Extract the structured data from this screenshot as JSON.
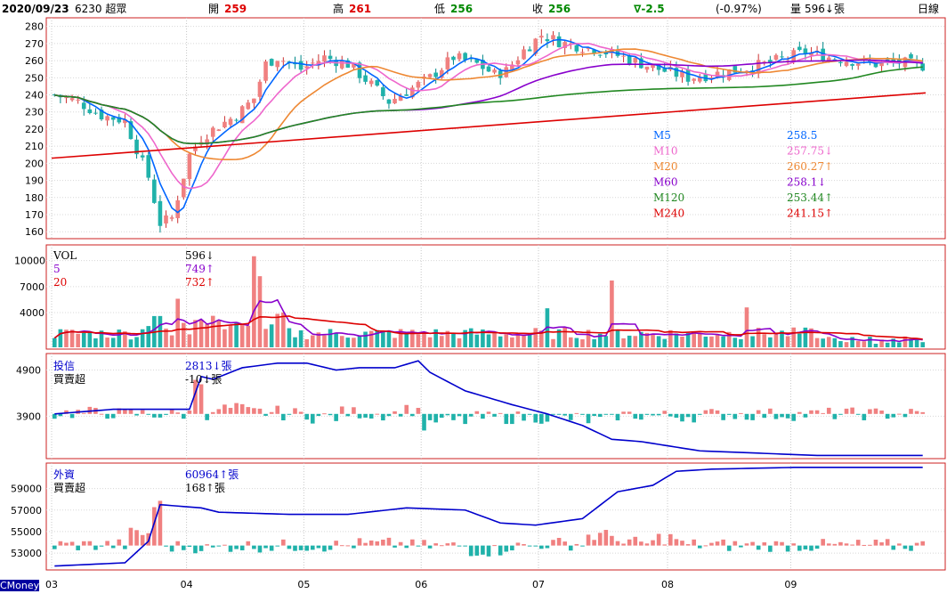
{
  "header": {
    "date": "2020/09/23",
    "stock": "6230 超眾",
    "open_label": "開",
    "open": "259",
    "high_label": "高",
    "high": "261",
    "low_label": "低",
    "low": "256",
    "close_label": "收",
    "close": "256",
    "change": "∇-2.5",
    "change_pct": "(-0.97%)",
    "volume_label": "量",
    "volume": "596↓張",
    "period": "日線"
  },
  "colors": {
    "up": "#f08080",
    "down": "#20b2aa",
    "frame": "#cc2222",
    "ma5": "#0066ff",
    "ma10": "#ee66cc",
    "ma20": "#ee8833",
    "ma60": "#8800cc",
    "ma120": "#228822",
    "ma240": "#dd0000",
    "vol5": "#8800cc",
    "vol20": "#dd0000",
    "trust_line": "#0000cc",
    "foreign_line": "#0000cc"
  },
  "chart_data": [
    {
      "type": "candlestick",
      "name": "price",
      "y_ticks": [
        160,
        170,
        180,
        190,
        200,
        210,
        220,
        230,
        240,
        250,
        260,
        270,
        280
      ],
      "ylim": [
        157,
        284
      ],
      "x_ticks": [
        "03",
        "04",
        "05",
        "06",
        "07",
        "08",
        "09"
      ],
      "month_starts": [
        0,
        23,
        43,
        63,
        83,
        105,
        126
      ],
      "candles_total": 149,
      "waypoints": [
        [
          0,
          240
        ],
        [
          4,
          236
        ],
        [
          8,
          228
        ],
        [
          12,
          225
        ],
        [
          16,
          192
        ],
        [
          18,
          165
        ],
        [
          20,
          168
        ],
        [
          23,
          205
        ],
        [
          25,
          215
        ],
        [
          28,
          222
        ],
        [
          31,
          228
        ],
        [
          34,
          238
        ],
        [
          36,
          258
        ],
        [
          38,
          262
        ],
        [
          42,
          255
        ],
        [
          46,
          262
        ],
        [
          50,
          258
        ],
        [
          54,
          246
        ],
        [
          57,
          236
        ],
        [
          60,
          242
        ],
        [
          64,
          250
        ],
        [
          68,
          262
        ],
        [
          72,
          258
        ],
        [
          75,
          252
        ],
        [
          77,
          254
        ],
        [
          80,
          266
        ],
        [
          83,
          275
        ],
        [
          87,
          270
        ],
        [
          92,
          267
        ],
        [
          97,
          262
        ],
        [
          102,
          256
        ],
        [
          108,
          250
        ],
        [
          112,
          252
        ],
        [
          117,
          255
        ],
        [
          121,
          258
        ],
        [
          125,
          262
        ],
        [
          128,
          265
        ],
        [
          132,
          262
        ],
        [
          136,
          260
        ],
        [
          140,
          258
        ],
        [
          144,
          259
        ],
        [
          148,
          257
        ]
      ],
      "legend": [
        {
          "name": "M5",
          "value": "258.5"
        },
        {
          "name": "M10",
          "value": "257.75↓"
        },
        {
          "name": "M20",
          "value": "260.27↑"
        },
        {
          "name": "M60",
          "value": "258.1↓"
        },
        {
          "name": "M120",
          "value": "253.44↑"
        },
        {
          "name": "M240",
          "value": "241.15↑"
        }
      ]
    },
    {
      "type": "bar",
      "name": "volume",
      "y_ticks": [
        4000,
        7000,
        10000
      ],
      "ylim": [
        0,
        11500
      ],
      "legend": [
        {
          "name": "VOL",
          "value": "596↓"
        },
        {
          "name": "5",
          "value": "749↑"
        },
        {
          "name": "20",
          "value": "732↑"
        }
      ]
    },
    {
      "type": "bar",
      "name": "investment_trust",
      "y_ticks": [
        3900,
        4900
      ],
      "legend": [
        {
          "name": "投信",
          "value": "2813↓張"
        },
        {
          "name": "買賣超",
          "value": "-10↓張"
        }
      ],
      "cumulative_waypoints": [
        [
          0,
          3950
        ],
        [
          10,
          4050
        ],
        [
          23,
          4050
        ],
        [
          25,
          4760
        ],
        [
          27,
          4700
        ],
        [
          32,
          4950
        ],
        [
          38,
          5050
        ],
        [
          43,
          5050
        ],
        [
          48,
          4900
        ],
        [
          52,
          4950
        ],
        [
          58,
          4950
        ],
        [
          62,
          5100
        ],
        [
          64,
          4850
        ],
        [
          70,
          4450
        ],
        [
          78,
          4150
        ],
        [
          84,
          3950
        ],
        [
          90,
          3700
        ],
        [
          95,
          3400
        ],
        [
          100,
          3350
        ],
        [
          110,
          3150
        ],
        [
          120,
          3100
        ],
        [
          130,
          3050
        ],
        [
          136,
          3050
        ]
      ]
    },
    {
      "type": "bar",
      "name": "foreign_investors",
      "y_ticks": [
        53000,
        55000,
        57000,
        59000
      ],
      "legend": [
        {
          "name": "外資",
          "value": "60964↑張"
        },
        {
          "name": "買賣超",
          "value": "168↑張"
        }
      ],
      "cumulative_waypoints": [
        [
          0,
          51800
        ],
        [
          8,
          52000
        ],
        [
          12,
          52100
        ],
        [
          16,
          54100
        ],
        [
          18,
          57500
        ],
        [
          25,
          57200
        ],
        [
          28,
          56800
        ],
        [
          40,
          56600
        ],
        [
          50,
          56600
        ],
        [
          60,
          57200
        ],
        [
          70,
          57000
        ],
        [
          76,
          55800
        ],
        [
          82,
          55600
        ],
        [
          90,
          56200
        ],
        [
          96,
          58700
        ],
        [
          102,
          59300
        ],
        [
          106,
          60600
        ],
        [
          112,
          60800
        ],
        [
          126,
          60964
        ]
      ]
    }
  ],
  "footer": {
    "brand": "CMoney"
  }
}
